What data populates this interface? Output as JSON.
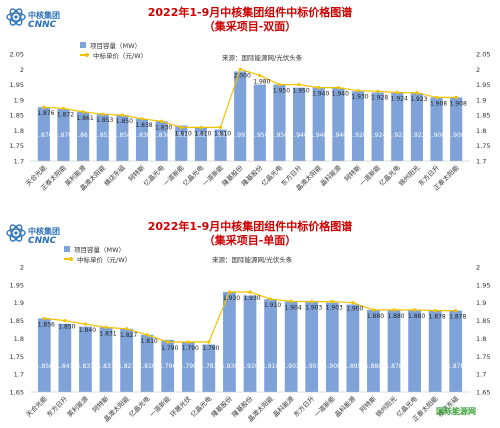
{
  "logo": {
    "cn": "中核集团",
    "en": "CNNC"
  },
  "watermark": "国际能源网",
  "chart_data": [
    {
      "type": "bar",
      "title": "2022年1-9月中核集团组件中标价格图谱",
      "subtitle": "（集采项目-双面）",
      "source": "来源：国际能源网/光伏头条",
      "legend": {
        "bar": "项目容量（MW）",
        "line": "中标单价（元/W）"
      },
      "legend_placement": "top-left",
      "ylim": [
        1.7,
        2.05
      ],
      "yticks": [
        "1.7",
        "1.75",
        "1.8",
        "1.85",
        "1.9",
        "1.95",
        "2",
        "2.05"
      ],
      "categories": [
        "天合光能",
        "正泰太阳能",
        "英利能源",
        "晶澳太阳能",
        "横店东磁",
        "阿特斯",
        "亿晶光电",
        "一道新能",
        "亿晶光电",
        "一道新能",
        "隆基股份",
        "隆基股份",
        "亿晶光电",
        "东方日升",
        "晶澳太阳能",
        "晶科能源",
        "阿特斯",
        "一道新能",
        "亿晶光电",
        "锦州阳光",
        "东方日升",
        "正泰太阳能"
      ],
      "series": [
        {
          "name": "项目容量（MW）",
          "values": [
            1.876,
            1.87,
            1.861,
            1.853,
            1.85,
            1.838,
            1.83,
            1.816,
            1.81,
            1.803,
            1.993,
            1.95,
            1.95,
            1.94,
            1.94,
            1.94,
            1.928,
            1.924,
            1.923,
            1.922,
            1.908,
            1.908
          ]
        },
        {
          "name": "中标单价（元/W）",
          "values": [
            1.876,
            1.872,
            1.861,
            1.853,
            1.85,
            1.838,
            1.83,
            1.81,
            1.81,
            1.81,
            2.0,
            1.98,
            1.95,
            1.95,
            1.94,
            1.94,
            1.93,
            1.928,
            1.924,
            1.923,
            1.908,
            1.908
          ]
        }
      ],
      "bar_labels": [
        "1.876",
        "1.870",
        "1.861",
        "1.853",
        "1.850",
        "1.838",
        "1.830",
        "1.816",
        "1.810",
        "1.803",
        "1.993",
        "1.950",
        "1.950",
        "1.940",
        "1.940",
        "1.940",
        "1.928",
        "1.924",
        "1.923",
        "1.922",
        "1.908",
        "1.908"
      ],
      "line_labels": [
        "1.876",
        "1.872",
        "1.861",
        "1.853",
        "1.850",
        "1.838",
        "1.830",
        "1.810",
        "1.810",
        "1.810",
        "2.000",
        "1.980",
        "1.950",
        "1.950",
        "1.940",
        "1.940",
        "1.930",
        "1.928",
        "1.924",
        "1.923",
        "1.908",
        "1.908"
      ],
      "grid": false
    },
    {
      "type": "bar",
      "title": "2022年1-9月中核集团组件中标价格图谱",
      "subtitle": "（集采项目-单面）",
      "source": "来源：国际能源网/光伏头条",
      "legend": {
        "bar": "项目容量（MW）",
        "line": "中标单价（元/W）"
      },
      "legend_placement": "top-left",
      "ylim": [
        1.65,
        2.0
      ],
      "yticks": [
        "1.65",
        "1.7",
        "1.75",
        "1.8",
        "1.85",
        "1.9",
        "1.95",
        "2"
      ],
      "categories": [
        "天合光能",
        "东方日升",
        "英利能源",
        "阿特斯",
        "晶澳太阳能",
        "亿晶光电",
        "一道新能",
        "环晟光伏",
        "亿晶光电",
        "隆基股份",
        "隆基股份",
        "晶澳太阳能",
        "晶科能源",
        "东方日升",
        "一道新能",
        "晶科能源",
        "阿特斯",
        "锦州阳光",
        "亿晶光电",
        "正泰太阳能",
        "横店东磁"
      ],
      "series": [
        {
          "name": "项目容量（MW）",
          "values": [
            1.856,
            1.841,
            1.833,
            1.831,
            1.827,
            1.81,
            1.796,
            1.79,
            1.783,
            1.93,
            1.92,
            1.91,
            1.903,
            1.903,
            1.9,
            1.895,
            1.88,
            1.878,
            1.878,
            1.878,
            1.878
          ]
        },
        {
          "name": "中标单价（元/W）",
          "values": [
            1.856,
            1.85,
            1.84,
            1.831,
            1.827,
            1.81,
            1.79,
            1.79,
            1.79,
            1.93,
            1.93,
            1.91,
            1.904,
            1.903,
            1.903,
            1.9,
            1.88,
            1.88,
            1.88,
            1.878,
            1.878
          ]
        }
      ],
      "bar_labels": [
        "1.856",
        "1.841",
        "1.833",
        "1.831",
        "1.827",
        "1.810",
        "1.796",
        "1.790",
        "1.783",
        "1.930",
        "1.920",
        "1.910",
        "1.903",
        "1.903",
        "1.900",
        "1.895",
        "1.880",
        "1.878",
        "",
        "",
        "1.878"
      ],
      "line_labels": [
        "1.856",
        "1.850",
        "1.840",
        "1.831",
        "1.827",
        "1.810",
        "1.790",
        "1.790",
        "1.790",
        "1.930",
        "1.930",
        "1.910",
        "1.904",
        "1.903",
        "1.903",
        "1.900",
        "1.880",
        "1.880",
        "1.880",
        "1.878",
        "1.878"
      ],
      "grid": false
    }
  ]
}
